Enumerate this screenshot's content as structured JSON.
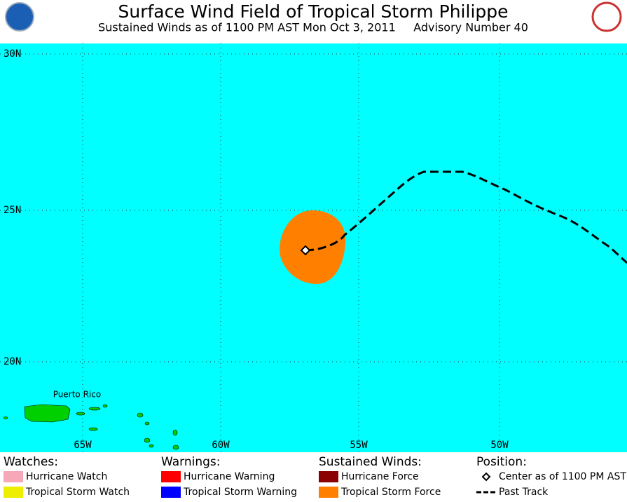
{
  "header": {
    "title": "Surface Wind Field of Tropical Storm Philippe",
    "subtitle": "Sustained Winds as of 1100 PM AST Mon Oct 3, 2011     Advisory Number 40"
  },
  "map": {
    "lat_labels": [
      "30N",
      "25N",
      "20N"
    ],
    "lon_labels": [
      "65W",
      "60W",
      "55W",
      "50W"
    ],
    "place_labels": [
      "Puerto Rico"
    ]
  },
  "legend": [
    {
      "title": "Watches:",
      "items": [
        {
          "label": "Hurricane Watch",
          "color": "#f7a8b8"
        },
        {
          "label": "Tropical Storm Watch",
          "color": "#eeee00"
        }
      ]
    },
    {
      "title": "Warnings:",
      "items": [
        {
          "label": "Hurricane Warning",
          "color": "#ff0000"
        },
        {
          "label": "Tropical Storm Warning",
          "color": "#0000ff"
        }
      ]
    },
    {
      "title": "Sustained Winds:",
      "items": [
        {
          "label": "Hurricane Force",
          "color": "#8b0000"
        },
        {
          "label": "Tropical Storm Force",
          "color": "#ff8000"
        }
      ]
    },
    {
      "title": "Position:",
      "items": [
        {
          "label": "Center as of 1100 PM AST"
        },
        {
          "label": "Past Track"
        }
      ]
    }
  ]
}
